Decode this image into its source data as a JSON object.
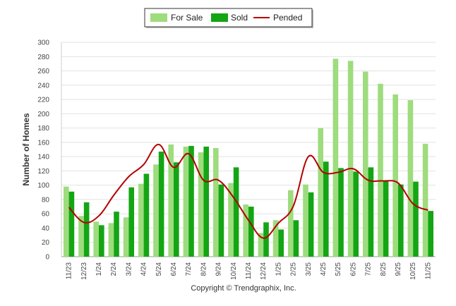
{
  "chart_data": {
    "type": "bar",
    "title": "",
    "xlabel": "",
    "ylabel": "Number of Homes",
    "ylim": [
      0,
      300
    ],
    "yticks": [
      0,
      20,
      40,
      60,
      80,
      100,
      120,
      140,
      160,
      180,
      200,
      220,
      240,
      260,
      280,
      300
    ],
    "grid": true,
    "legend_position": "top-center",
    "categories": [
      "11/23",
      "12/23",
      "1/24",
      "2/24",
      "3/24",
      "4/24",
      "5/24",
      "6/24",
      "7/24",
      "8/24",
      "9/24",
      "10/24",
      "11/24",
      "12/24",
      "1/25",
      "2/25",
      "3/25",
      "4/25",
      "5/25",
      "6/25",
      "7/25",
      "8/25",
      "9/25",
      "10/25",
      "11/25"
    ],
    "series": [
      {
        "name": "For Sale",
        "type": "bar",
        "color": "#9edc7e",
        "values": [
          98,
          57,
          49,
          47,
          55,
          102,
          129,
          157,
          154,
          146,
          152,
          103,
          73,
          33,
          51,
          93,
          101,
          180,
          277,
          274,
          259,
          242,
          227,
          219,
          158
        ]
      },
      {
        "name": "Sold",
        "type": "bar",
        "color": "#14a514",
        "values": [
          91,
          76,
          44,
          63,
          97,
          116,
          147,
          132,
          155,
          154,
          101,
          125,
          70,
          48,
          38,
          51,
          90,
          133,
          124,
          119,
          125,
          106,
          101,
          105,
          64
        ]
      },
      {
        "name": "Pended",
        "type": "line",
        "color": "#b40000",
        "values": [
          69,
          48,
          57,
          86,
          112,
          129,
          157,
          125,
          144,
          107,
          107,
          83,
          51,
          26,
          47,
          71,
          140,
          118,
          118,
          123,
          107,
          106,
          103,
          74,
          65
        ]
      }
    ]
  },
  "credit": "Copyright © Trendgraphix, Inc."
}
